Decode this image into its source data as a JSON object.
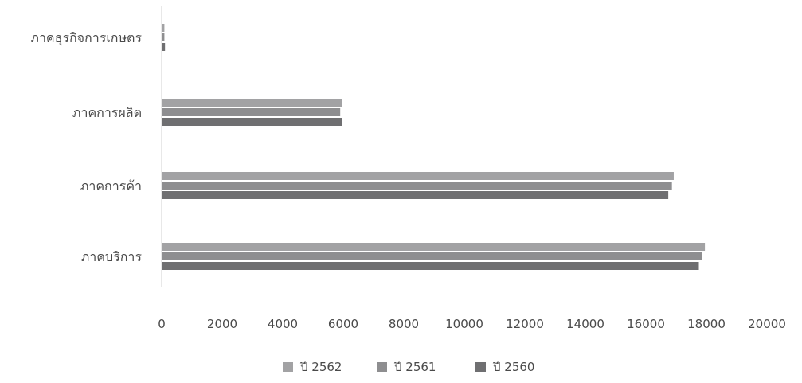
{
  "chart_data": {
    "type": "bar",
    "orientation": "horizontal",
    "categories": [
      "ภาคธุรกิจการเกษตร",
      "ภาคการผลิต",
      "ภาคการค้า",
      "ภาคบริการ"
    ],
    "series": [
      {
        "name": "ปี 2562",
        "values": [
          90,
          5960,
          16920,
          17950
        ],
        "color": "#a2a2a4"
      },
      {
        "name": "ปี 2561",
        "values": [
          90,
          5900,
          16860,
          17850
        ],
        "color": "#8e8e90"
      },
      {
        "name": "ปี 2560",
        "values": [
          110,
          5950,
          16740,
          17750
        ],
        "color": "#6f6f71"
      }
    ],
    "xlim": [
      0,
      20000
    ],
    "xticks": [
      "0",
      "2000",
      "4000",
      "6000",
      "8000",
      "10000",
      "12000",
      "14000",
      "16000",
      "18000",
      "20000"
    ],
    "grid": false,
    "legend_position": "bottom"
  }
}
